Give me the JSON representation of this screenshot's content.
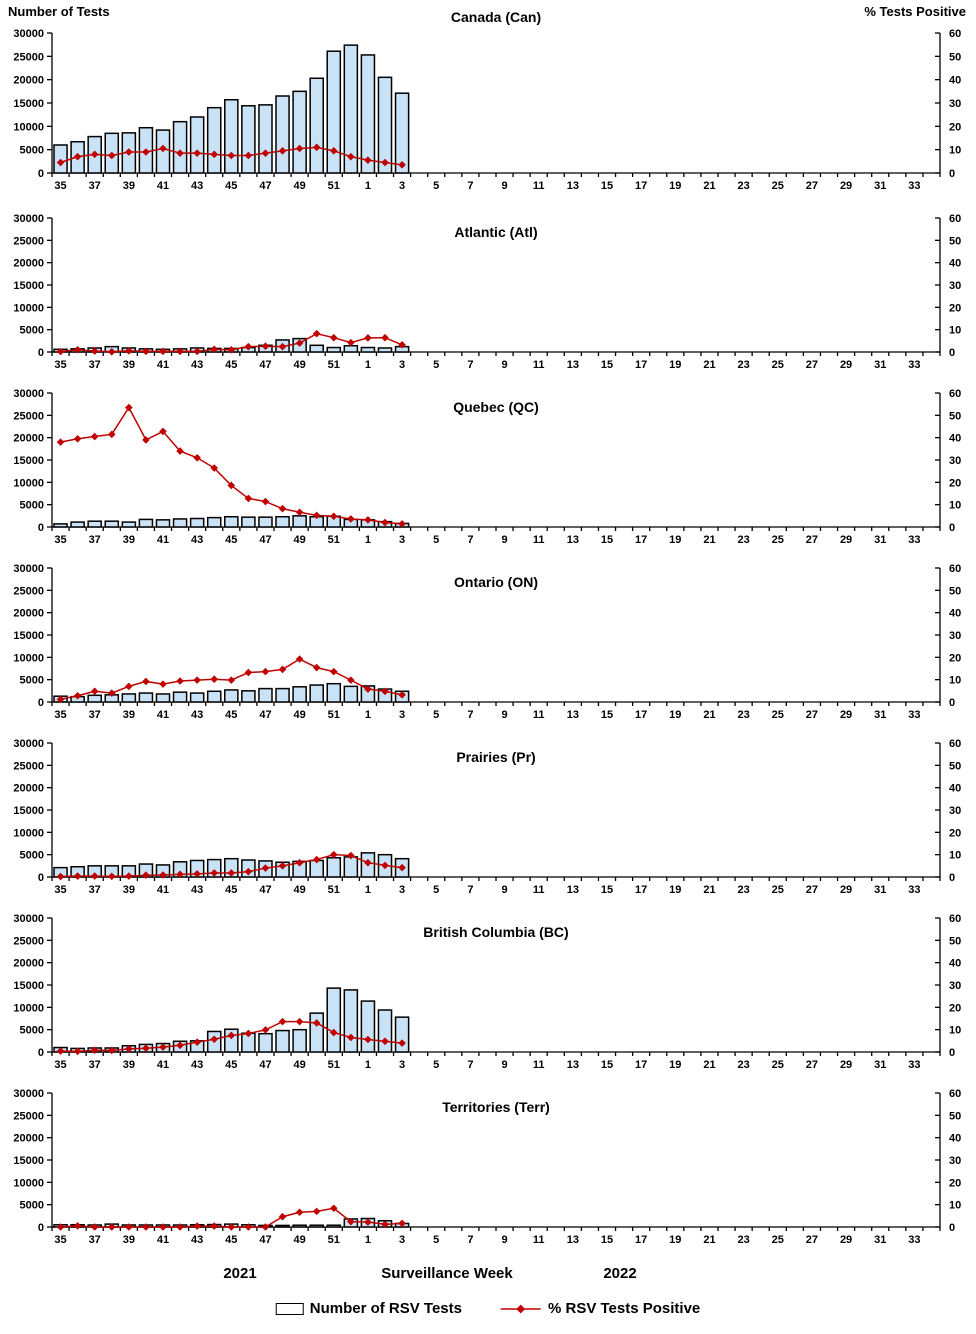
{
  "header": {
    "left_axis_title": "Number of Tests",
    "right_axis_title": "% Tests Positive"
  },
  "footer": {
    "year_left": "2021",
    "xaxis_title": "Surveillance Week",
    "year_right": "2022",
    "legend_bar_label": "Number of RSV Tests",
    "legend_line_label": "% RSV Tests Positive"
  },
  "colors": {
    "bar_fill": "#C9E2F6",
    "bar_stroke": "#000000",
    "line": "#C00000",
    "axis": "#000000"
  },
  "axes": {
    "ylim_left": [
      0,
      30000
    ],
    "ylim_right": [
      0,
      60
    ],
    "left_ticks": [
      0,
      5000,
      10000,
      15000,
      20000,
      25000,
      30000
    ],
    "right_ticks": [
      0,
      10,
      20,
      30,
      40,
      50,
      60
    ],
    "weeks": [
      35,
      36,
      37,
      38,
      39,
      40,
      41,
      42,
      43,
      44,
      45,
      46,
      47,
      48,
      49,
      50,
      51,
      52,
      1,
      2,
      3,
      4,
      5,
      6,
      7,
      8,
      9,
      10,
      11,
      12,
      13,
      14,
      15,
      16,
      17,
      18,
      19,
      20,
      21,
      22,
      23,
      24,
      25,
      26,
      27,
      28,
      29,
      30,
      31,
      32,
      33,
      34
    ],
    "data_weeks": [
      35,
      36,
      37,
      38,
      39,
      40,
      41,
      42,
      43,
      44,
      45,
      46,
      47,
      48,
      49,
      50,
      51,
      52,
      1,
      2,
      3
    ]
  },
  "chart_data": [
    {
      "type": "bar+line",
      "title": "Canada (Can)",
      "series": [
        {
          "name": "Number of RSV Tests",
          "type": "bar",
          "axis": "left",
          "values": [
            6000,
            6700,
            7800,
            8500,
            8600,
            9700,
            9200,
            11000,
            12000,
            14000,
            15700,
            14400,
            14600,
            16500,
            17500,
            20300,
            26100,
            27400,
            25300,
            20500,
            17100
          ]
        },
        {
          "name": "% RSV Tests Positive",
          "type": "line",
          "axis": "right",
          "values": [
            4.5,
            7,
            8,
            7.5,
            9,
            9,
            10.5,
            8.5,
            8.5,
            8,
            7.5,
            7.5,
            8.5,
            9.5,
            10.5,
            11,
            9.5,
            7,
            5.5,
            4.5,
            3.5
          ]
        }
      ]
    },
    {
      "type": "bar+line",
      "title": "Atlantic (Atl)",
      "series": [
        {
          "name": "Number of RSV Tests",
          "type": "bar",
          "axis": "left",
          "values": [
            600,
            700,
            900,
            1200,
            900,
            700,
            600,
            700,
            900,
            800,
            800,
            1000,
            1500,
            2700,
            3000,
            1500,
            1000,
            1400,
            1000,
            900,
            1200
          ]
        },
        {
          "name": "% RSV Tests Positive",
          "type": "line",
          "axis": "right",
          "values": [
            0.2,
            1,
            0.4,
            0.1,
            0.5,
            0.3,
            0.3,
            0.3,
            0.3,
            1.2,
            1,
            2.4,
            2.6,
            2.4,
            4,
            8.2,
            6.4,
            4.2,
            6.3,
            6.4,
            3.2
          ]
        }
      ]
    },
    {
      "type": "bar+line",
      "title": "Quebec (QC)",
      "series": [
        {
          "name": "Number of RSV Tests",
          "type": "bar",
          "axis": "left",
          "values": [
            700,
            1100,
            1300,
            1300,
            1100,
            1700,
            1600,
            1800,
            1900,
            2100,
            2300,
            2200,
            2200,
            2300,
            2500,
            2300,
            2400,
            1700,
            1600,
            1200,
            800
          ]
        },
        {
          "name": "% RSV Tests Positive",
          "type": "line",
          "axis": "right",
          "values": [
            38,
            39.5,
            40.5,
            41.5,
            53.5,
            39,
            42.8,
            34,
            31,
            26.4,
            18.6,
            12.8,
            11.4,
            8.2,
            6.6,
            5.2,
            4.8,
            3.6,
            3.2,
            2,
            1.4
          ]
        }
      ]
    },
    {
      "type": "bar+line",
      "title": "Ontario (ON)",
      "series": [
        {
          "name": "Number of RSV Tests",
          "type": "bar",
          "axis": "left",
          "values": [
            1300,
            1200,
            1500,
            1600,
            1800,
            2000,
            1800,
            2200,
            2000,
            2400,
            2700,
            2500,
            3000,
            3000,
            3400,
            3800,
            4100,
            3500,
            3600,
            2900,
            2400
          ]
        },
        {
          "name": "% RSV Tests Positive",
          "type": "line",
          "axis": "right",
          "values": [
            1.2,
            2.8,
            4.8,
            4,
            7,
            9.2,
            8,
            9.4,
            9.8,
            10.2,
            9.8,
            13.2,
            13.6,
            14.6,
            19.2,
            15.4,
            13.6,
            9.8,
            5.8,
            4.8,
            3.2
          ]
        }
      ]
    },
    {
      "type": "bar+line",
      "title": "Prairies (Pr)",
      "series": [
        {
          "name": "Number of RSV Tests",
          "type": "bar",
          "axis": "left",
          "values": [
            2100,
            2300,
            2500,
            2500,
            2500,
            2900,
            2700,
            3400,
            3700,
            3900,
            4100,
            3800,
            3600,
            3300,
            3500,
            3700,
            4300,
            4500,
            5400,
            5000,
            4100
          ]
        },
        {
          "name": "% RSV Tests Positive",
          "type": "line",
          "axis": "right",
          "values": [
            0.2,
            0.4,
            0.4,
            0.3,
            0.4,
            0.8,
            0.9,
            1.2,
            1.4,
            1.8,
            1.8,
            2.4,
            4,
            5,
            6.4,
            7.8,
            10,
            9.6,
            6.4,
            5.2,
            4.2
          ]
        }
      ]
    },
    {
      "type": "bar+line",
      "title": "British Columbia (BC)",
      "series": [
        {
          "name": "Number of RSV Tests",
          "type": "bar",
          "axis": "left",
          "values": [
            1000,
            800,
            900,
            900,
            1400,
            1700,
            1900,
            2400,
            2500,
            4600,
            5100,
            4200,
            4100,
            4800,
            5000,
            8700,
            14300,
            13900,
            11400,
            9400,
            7800
          ]
        },
        {
          "name": "% RSV Tests Positive",
          "type": "line",
          "axis": "right",
          "values": [
            0.4,
            0.3,
            0.8,
            0.7,
            1.4,
            1.7,
            2.2,
            3,
            4.4,
            5.7,
            7.4,
            8.3,
            9.9,
            13.6,
            13.6,
            13,
            8.7,
            6.5,
            5.6,
            4.8,
            4
          ]
        }
      ]
    },
    {
      "type": "bar+line",
      "title": "Territories (Terr)",
      "series": [
        {
          "name": "Number of RSV Tests",
          "type": "bar",
          "axis": "left",
          "values": [
            500,
            500,
            450,
            650,
            450,
            450,
            450,
            450,
            500,
            550,
            650,
            500,
            350,
            350,
            400,
            400,
            400,
            1800,
            1900,
            1400,
            800
          ]
        },
        {
          "name": "% RSV Tests Positive",
          "type": "line",
          "axis": "right",
          "values": [
            0,
            0.5,
            0,
            0,
            0,
            0,
            0,
            0,
            0.4,
            0.4,
            0,
            0,
            0,
            4.6,
            6.6,
            7,
            8.4,
            2.4,
            2.2,
            1.2,
            1.6
          ]
        }
      ]
    }
  ]
}
